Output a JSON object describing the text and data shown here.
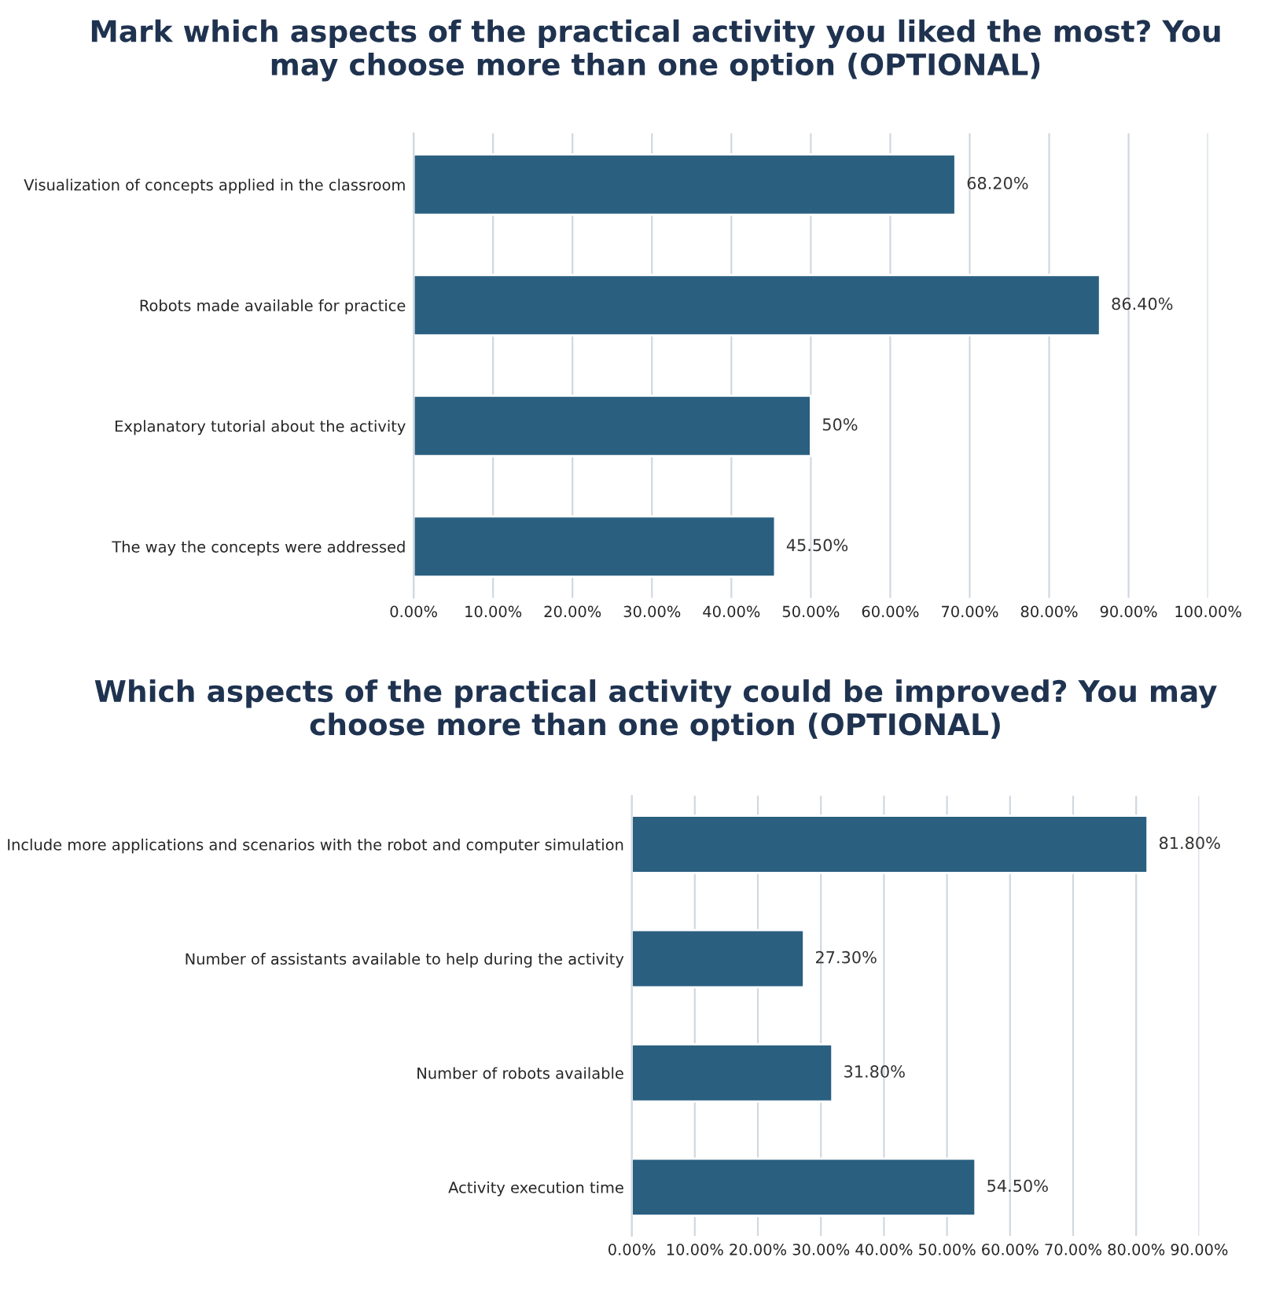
{
  "chart_data": [
    {
      "type": "bar",
      "orientation": "horizontal",
      "title": "Mark which aspects of the practical activity you liked the most? You may choose more than one option (OPTIONAL)",
      "categories": [
        "Visualization of concepts applied in the classroom",
        "Robots made available for practice",
        "Explanatory tutorial about the activity",
        "The way the concepts were addressed"
      ],
      "values": [
        68.2,
        86.4,
        50,
        45.5
      ],
      "value_labels": [
        "68.20%",
        "86.40%",
        "50%",
        "45.50%"
      ],
      "color": "#2a5f80",
      "xlim": [
        0,
        100
      ],
      "xticks": [
        {
          "value": 0,
          "label": "0.00%"
        },
        {
          "value": 10,
          "label": "10.00%"
        },
        {
          "value": 20,
          "label": "20.00%"
        },
        {
          "value": 30,
          "label": "30.00%"
        },
        {
          "value": 40,
          "label": "40.00%"
        },
        {
          "value": 50,
          "label": "50.00%"
        },
        {
          "value": 60,
          "label": "60.00%"
        },
        {
          "value": 70,
          "label": "70.00%"
        },
        {
          "value": 80,
          "label": "80.00%"
        },
        {
          "value": 90,
          "label": "90.00%"
        },
        {
          "value": 100,
          "label": "100.00%"
        }
      ],
      "grid": "x",
      "legend": false
    },
    {
      "type": "bar",
      "orientation": "horizontal",
      "title": "Which aspects of the practical activity could be improved? You may choose more than one option (OPTIONAL)",
      "categories": [
        "Include more applications and scenarios with the robot and computer simulation",
        "Number of assistants available to help during the activity",
        "Number of robots available",
        "Activity execution time"
      ],
      "values": [
        81.8,
        27.3,
        31.8,
        54.5
      ],
      "value_labels": [
        "81.80%",
        "27.30%",
        "31.80%",
        "54.50%"
      ],
      "color": "#2a5f80",
      "xlim": [
        0,
        90
      ],
      "xticks": [
        {
          "value": 0,
          "label": "0.00%"
        },
        {
          "value": 10,
          "label": "10.00%"
        },
        {
          "value": 20,
          "label": "20.00%"
        },
        {
          "value": 30,
          "label": "30.00%"
        },
        {
          "value": 40,
          "label": "40.00%"
        },
        {
          "value": 50,
          "label": "50.00%"
        },
        {
          "value": 60,
          "label": "60.00%"
        },
        {
          "value": 70,
          "label": "70.00%"
        },
        {
          "value": 80,
          "label": "80.00%"
        },
        {
          "value": 90,
          "label": "90.00%"
        }
      ],
      "grid": "x",
      "legend": false
    }
  ]
}
